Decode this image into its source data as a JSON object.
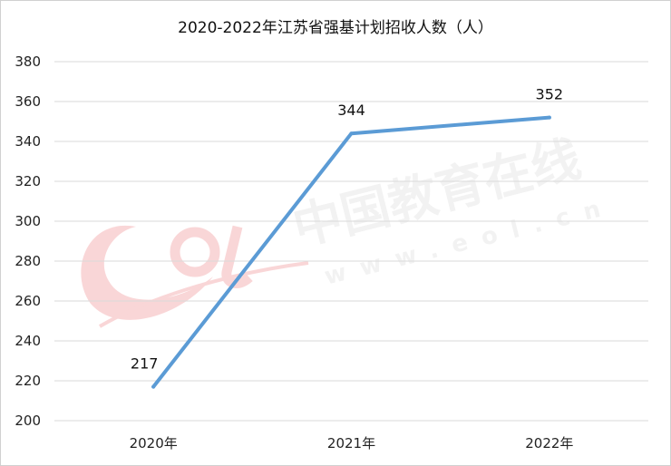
{
  "chart_data": {
    "type": "line",
    "title": "2020-2022年江苏省强基计划招收人数（人）",
    "categories": [
      "2020年",
      "2021年",
      "2022年"
    ],
    "series": [
      {
        "values": [
          217,
          344,
          352
        ]
      }
    ],
    "data_labels": [
      "217",
      "344",
      "352"
    ],
    "ylim": [
      200,
      380
    ],
    "yticks": [
      200,
      220,
      240,
      260,
      280,
      300,
      320,
      340,
      360,
      380
    ],
    "grid": true,
    "legend": "none",
    "line_color": "#5b9bd5"
  },
  "watermark": {
    "logo_text": "EOL",
    "cn_text": "中国教育在线",
    "url_text": "www.eol.cn"
  }
}
